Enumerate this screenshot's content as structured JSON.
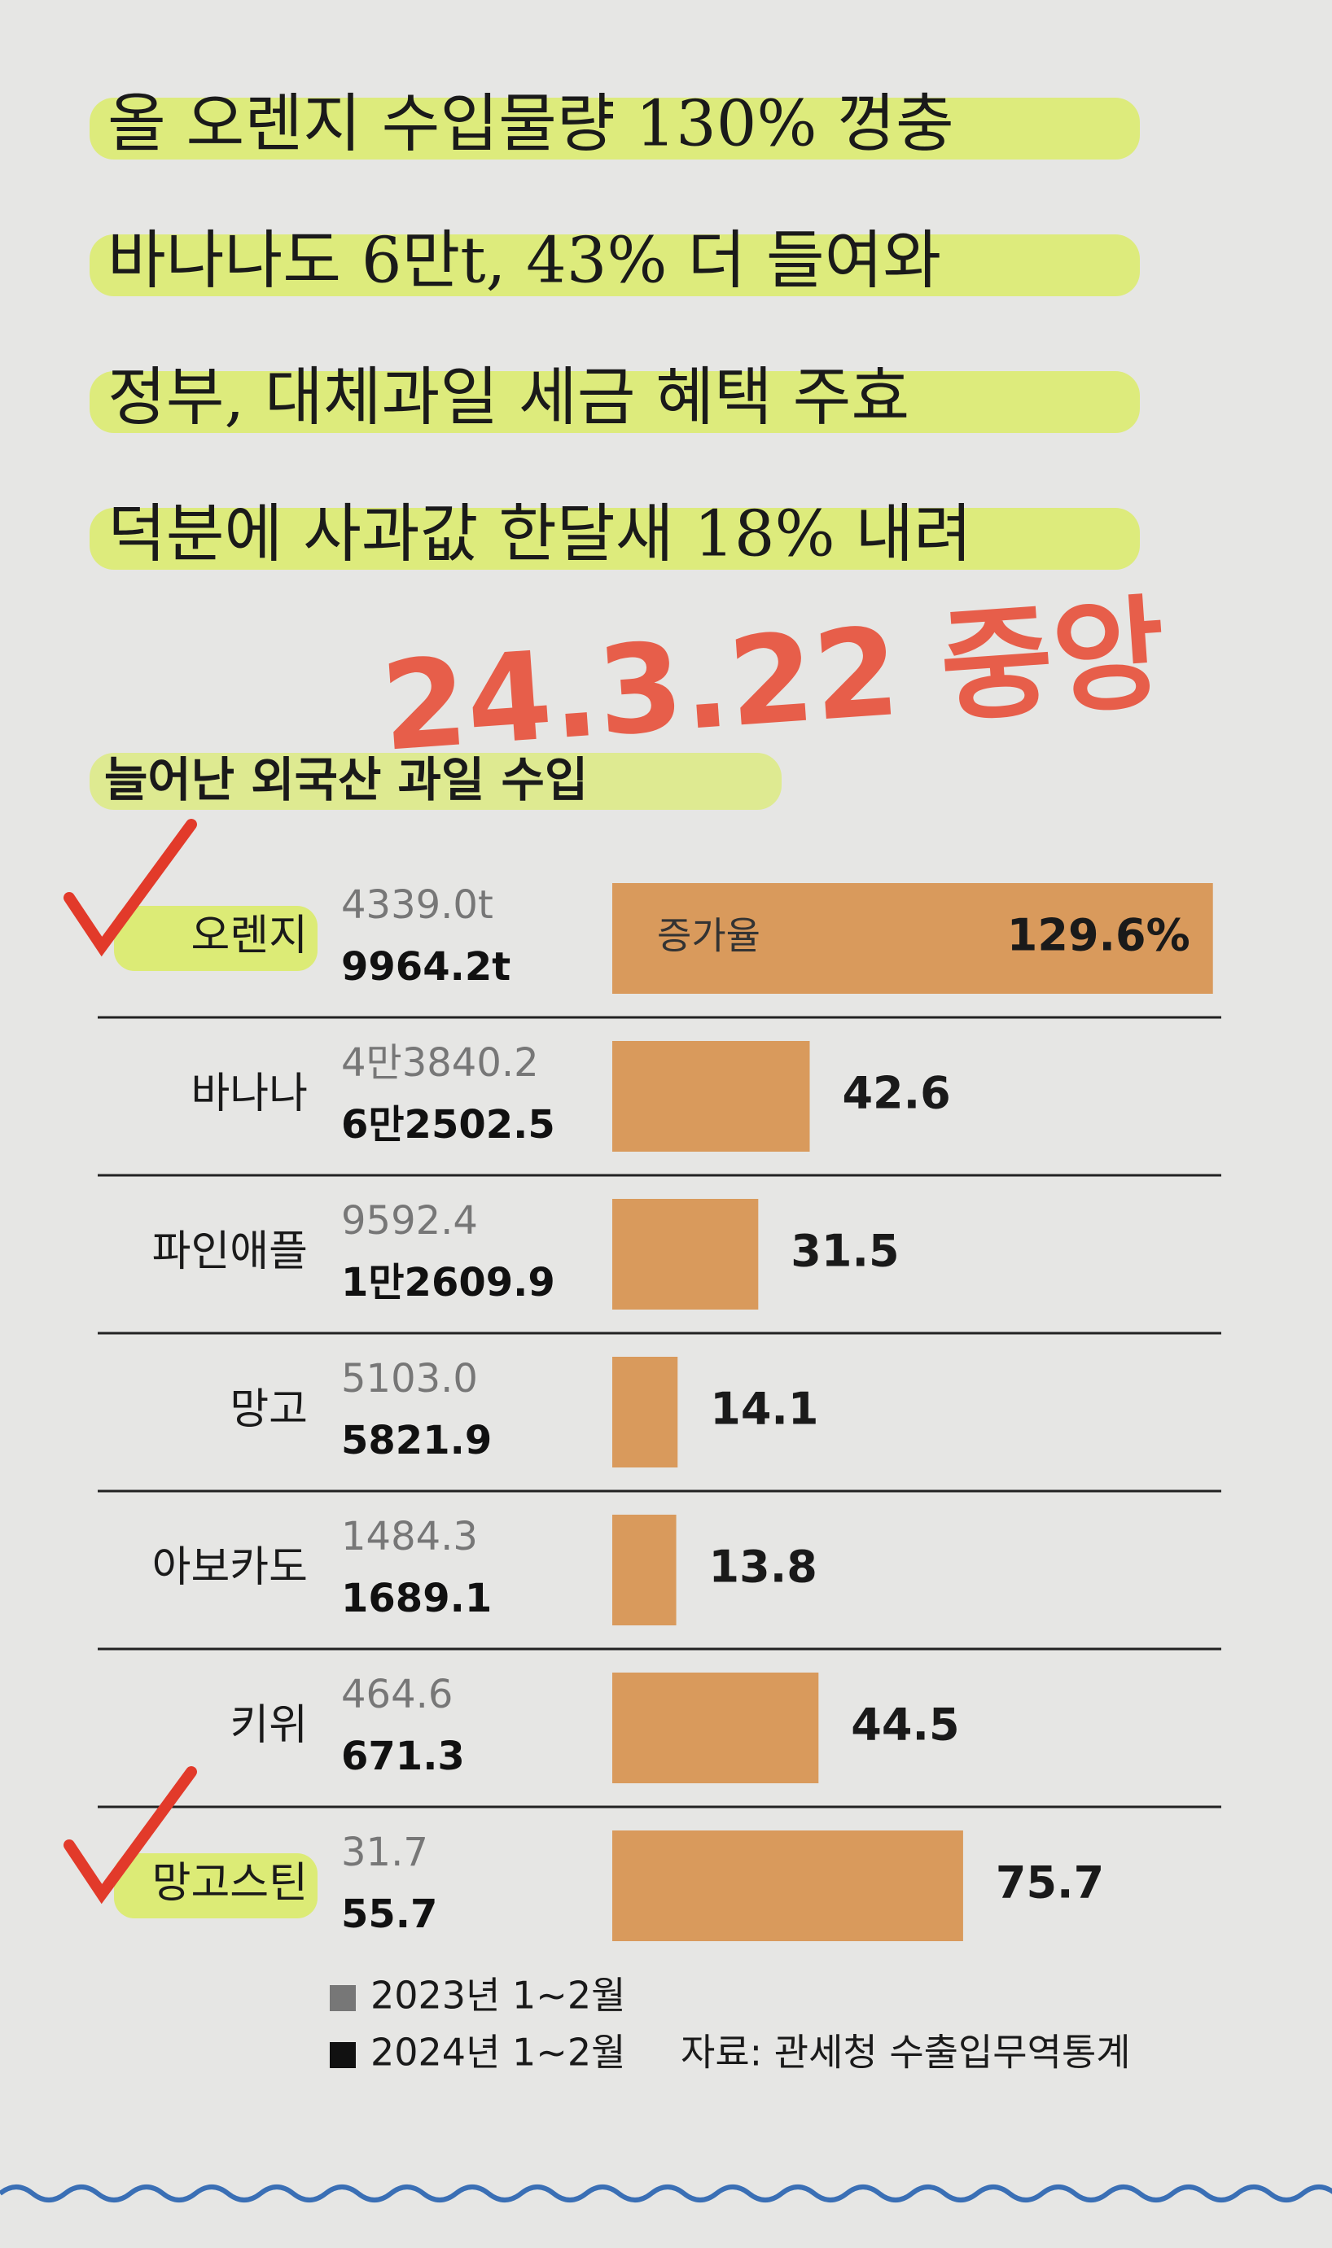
{
  "headlines": [
    "올 오렌지 수입물량 130% 껑충",
    "바나나도 6만t, 43% 더 들여와",
    "정부, 대체과일 세금 혜택 주효",
    "덕분에 사과값 한달새 18% 내려"
  ],
  "handwritten_note": "24.3.22 중앙",
  "chart_data": {
    "type": "bar",
    "orientation": "horizontal",
    "title": "늘어난 외국산 과일 수입",
    "categories": [
      "오렌지",
      "바나나",
      "파인애플",
      "망고",
      "아보카도",
      "키위",
      "망고스틴"
    ],
    "values": [
      129.6,
      42.6,
      31.5,
      14.1,
      13.8,
      44.5,
      75.7
    ],
    "value_labels": [
      "129.6%",
      "42.6",
      "31.5",
      "14.1",
      "13.8",
      "44.5",
      "75.7"
    ],
    "bar_annotation": "증가율",
    "color": "#d99a5c",
    "xlim": [
      0,
      130
    ],
    "amounts": [
      {
        "name": "2023년 1~2월",
        "color": "#777777",
        "labels": [
          "4339.0t",
          "4만3840.2",
          "9592.4",
          "5103.0",
          "1484.3",
          "464.6",
          "31.7"
        ]
      },
      {
        "name": "2024년 1~2월",
        "color": "#111111",
        "labels": [
          "9964.2t",
          "6만2502.5",
          "1만2609.9",
          "5821.9",
          "1689.1",
          "671.3",
          "55.7"
        ]
      }
    ],
    "highlighted": [
      0,
      6
    ],
    "source": "자료: 관세청 수출입무역통계"
  }
}
